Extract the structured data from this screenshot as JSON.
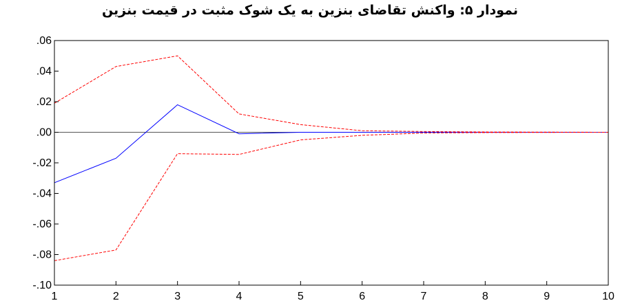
{
  "chart_data": {
    "type": "line",
    "title": "نمودار ۵: واکنش تقاضای بنزین به یک شوک مثبت در قیمت بنزین",
    "xlabel": "",
    "ylabel": "",
    "x": [
      1,
      2,
      3,
      4,
      5,
      6,
      7,
      8,
      9,
      10
    ],
    "xlim": [
      1,
      10
    ],
    "ylim": [
      -0.1,
      0.06
    ],
    "x_ticks": [
      "1",
      "2",
      "3",
      "4",
      "5",
      "6",
      "7",
      "8",
      "9",
      "10"
    ],
    "y_ticks": [
      {
        "value": 0.06,
        "label": ".06"
      },
      {
        "value": 0.04,
        "label": ".04"
      },
      {
        "value": 0.02,
        "label": ".02"
      },
      {
        "value": 0.0,
        "label": ".00"
      },
      {
        "value": -0.02,
        "label": "-.02"
      },
      {
        "value": -0.04,
        "label": "-.04"
      },
      {
        "value": -0.06,
        "label": "-.06"
      },
      {
        "value": -0.08,
        "label": "-.08"
      },
      {
        "value": -0.1,
        "label": "-.10"
      }
    ],
    "grid": false,
    "zero_line": true,
    "series": [
      {
        "values": [
          -0.033,
          -0.017,
          0.018,
          -0.001,
          0.0,
          0.0,
          0.0,
          0.0,
          0.0,
          0.0
        ],
        "color": "#0000ff",
        "style": "solid"
      },
      {
        "values": [
          0.019,
          0.043,
          0.05,
          0.012,
          0.005,
          0.001,
          0.0005,
          0.0002,
          0.0001,
          0.0
        ],
        "color": "#ff0000",
        "style": "dashed"
      },
      {
        "values": [
          -0.084,
          -0.077,
          -0.014,
          -0.0145,
          -0.005,
          -0.002,
          -0.0005,
          -0.0002,
          -0.0001,
          0.0
        ],
        "color": "#ff0000",
        "style": "dashed"
      }
    ]
  }
}
